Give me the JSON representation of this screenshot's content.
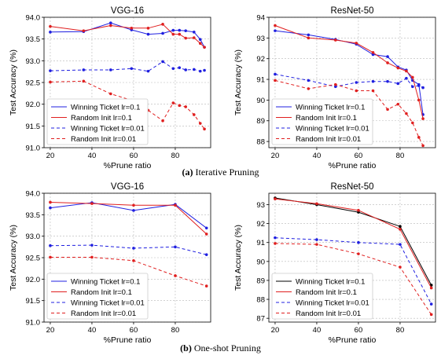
{
  "captions": {
    "top_label": "(a)",
    "top_text": "Iterative Pruning",
    "bottom_label": "(b)",
    "bottom_text": "One-shot Pruning"
  },
  "colors": {
    "blue": "#1f1fe0",
    "red": "#e01f1f",
    "grid": "#b8b8b8"
  },
  "chart_data": [
    {
      "type": "line",
      "title": "VGG-16",
      "xlabel": "%Prune ratio",
      "ylabel": "Test Accuracy (%)",
      "xlim": [
        17,
        97
      ],
      "ylim": [
        91.0,
        94.0
      ],
      "xticks": [
        20,
        40,
        60,
        80
      ],
      "yticks": [
        91.0,
        91.5,
        92.0,
        92.5,
        93.0,
        93.5,
        94.0
      ],
      "ytick_labels": [
        "91.0",
        "91.5",
        "92.0",
        "92.5",
        "93.0",
        "93.5",
        "94.0"
      ],
      "grid": true,
      "legend_position": "lower-left",
      "series": [
        {
          "name": "Winning Ticket lr=0.1",
          "color": "blue",
          "dash": false,
          "x": [
            20,
            36,
            49,
            59,
            67,
            74,
            79,
            82,
            85,
            89,
            92,
            94
          ],
          "y": [
            93.66,
            93.67,
            93.87,
            93.71,
            93.61,
            93.63,
            93.7,
            93.7,
            93.69,
            93.66,
            93.49,
            93.31
          ]
        },
        {
          "name": "Random Init lr=0.1",
          "color": "red",
          "dash": false,
          "x": [
            20,
            36,
            49,
            59,
            67,
            74,
            79,
            82,
            85,
            89,
            92,
            94
          ],
          "y": [
            93.79,
            93.69,
            93.81,
            93.75,
            93.75,
            93.84,
            93.61,
            93.61,
            93.52,
            93.53,
            93.4,
            93.31
          ]
        },
        {
          "name": "Winning Ticket lr=0.01",
          "color": "blue",
          "dash": true,
          "x": [
            20,
            36,
            49,
            59,
            67,
            74,
            79,
            82,
            85,
            89,
            92,
            94
          ],
          "y": [
            92.77,
            92.79,
            92.79,
            92.82,
            92.76,
            92.98,
            92.82,
            92.84,
            92.79,
            92.8,
            92.76,
            92.78
          ]
        },
        {
          "name": "Random Init lr=0.01",
          "color": "red",
          "dash": true,
          "x": [
            20,
            36,
            49,
            59,
            67,
            74,
            79,
            82,
            85,
            89,
            92,
            94
          ],
          "y": [
            92.51,
            92.53,
            92.24,
            92.09,
            91.86,
            91.62,
            92.03,
            91.97,
            91.94,
            91.76,
            91.56,
            91.43
          ]
        }
      ]
    },
    {
      "type": "line",
      "title": "ResNet-50",
      "xlabel": "%Prune ratio",
      "ylabel": "Test Accuracy (%)",
      "xlim": [
        17,
        97
      ],
      "ylim": [
        87.7,
        94.0
      ],
      "xticks": [
        20,
        40,
        60,
        80
      ],
      "yticks": [
        88,
        89,
        90,
        91,
        92,
        93,
        94
      ],
      "ytick_labels": [
        "88",
        "89",
        "90",
        "91",
        "92",
        "93",
        "94"
      ],
      "grid": true,
      "legend_position": "lower-left",
      "series": [
        {
          "name": "Winning Ticket lr=0.1",
          "color": "blue",
          "dash": false,
          "x": [
            20,
            36,
            49,
            59,
            67,
            74,
            79,
            83,
            86,
            89,
            91
          ],
          "y": [
            93.35,
            93.15,
            92.93,
            92.7,
            92.2,
            92.1,
            91.6,
            91.45,
            90.95,
            90.75,
            89.3
          ]
        },
        {
          "name": "Random Init lr=0.1",
          "color": "red",
          "dash": false,
          "x": [
            20,
            36,
            49,
            59,
            67,
            74,
            79,
            83,
            86,
            89,
            91
          ],
          "y": [
            93.6,
            93.0,
            92.9,
            92.75,
            92.3,
            91.8,
            91.55,
            91.4,
            91.1,
            90.0,
            89.1
          ]
        },
        {
          "name": "Winning Ticket lr=0.01",
          "color": "blue",
          "dash": true,
          "x": [
            20,
            36,
            49,
            59,
            67,
            74,
            79,
            83,
            86,
            89,
            91
          ],
          "y": [
            91.25,
            90.95,
            90.65,
            90.85,
            90.9,
            90.9,
            90.8,
            91.05,
            90.65,
            90.7,
            90.6
          ]
        },
        {
          "name": "Random Init lr=0.01",
          "color": "red",
          "dash": true,
          "x": [
            20,
            36,
            49,
            59,
            67,
            74,
            79,
            83,
            86,
            89,
            91
          ],
          "y": [
            90.95,
            90.55,
            90.75,
            90.45,
            90.45,
            89.55,
            89.8,
            89.35,
            88.9,
            88.2,
            87.8
          ]
        }
      ]
    },
    {
      "type": "line",
      "title": "VGG-16",
      "xlabel": "%Prune ratio",
      "ylabel": "Test Accuracy (%)",
      "xlim": [
        17,
        97
      ],
      "ylim": [
        91.0,
        94.0
      ],
      "xticks": [
        20,
        40,
        60,
        80
      ],
      "yticks": [
        91.0,
        91.5,
        92.0,
        92.5,
        93.0,
        93.5,
        94.0
      ],
      "ytick_labels": [
        "91.0",
        "91.5",
        "92.0",
        "92.5",
        "93.0",
        "93.5",
        "94.0"
      ],
      "grid": true,
      "legend_position": "lower-left",
      "series": [
        {
          "name": "Winning Ticket lr=0.1",
          "color": "blue",
          "dash": false,
          "x": [
            20,
            40,
            60,
            80,
            95
          ],
          "y": [
            93.66,
            93.78,
            93.6,
            93.74,
            93.19
          ]
        },
        {
          "name": "Random Init lr=0.1",
          "color": "red",
          "dash": false,
          "x": [
            20,
            40,
            60,
            80,
            95
          ],
          "y": [
            93.79,
            93.76,
            93.72,
            93.72,
            93.05
          ]
        },
        {
          "name": "Winning Ticket lr=0.01",
          "color": "blue",
          "dash": true,
          "x": [
            20,
            40,
            60,
            80,
            95
          ],
          "y": [
            92.78,
            92.79,
            92.72,
            92.75,
            92.57
          ]
        },
        {
          "name": "Random Init lr=0.01",
          "color": "red",
          "dash": true,
          "x": [
            20,
            40,
            60,
            80,
            95
          ],
          "y": [
            92.51,
            92.51,
            92.43,
            92.08,
            91.84
          ]
        }
      ]
    },
    {
      "type": "line",
      "title": "ResNet-50",
      "xlabel": "%Prune ratio",
      "ylabel": "Test Accuracy (%)",
      "xlim": [
        17,
        97
      ],
      "ylim": [
        86.8,
        93.6
      ],
      "xticks": [
        20,
        40,
        60,
        80
      ],
      "yticks": [
        87,
        88,
        89,
        90,
        91,
        92,
        93
      ],
      "ytick_labels": [
        "87",
        "88",
        "89",
        "90",
        "91",
        "92",
        "93"
      ],
      "grid": true,
      "legend_position": "lower-left",
      "series": [
        {
          "name": "Winning Ticket lr=0.1",
          "color": "black",
          "dash": false,
          "x": [
            20,
            40,
            60,
            80,
            95
          ],
          "y": [
            93.35,
            93.0,
            92.6,
            91.85,
            88.75
          ]
        },
        {
          "name": "Random Init lr=0.1",
          "color": "red",
          "dash": false,
          "x": [
            20,
            40,
            60,
            80,
            95
          ],
          "y": [
            93.3,
            93.05,
            92.7,
            91.7,
            88.6
          ]
        },
        {
          "name": "Winning Ticket lr=0.01",
          "color": "blue",
          "dash": true,
          "x": [
            20,
            40,
            60,
            80,
            95
          ],
          "y": [
            91.25,
            91.15,
            91.0,
            90.9,
            87.75
          ]
        },
        {
          "name": "Random Init lr=0.01",
          "color": "red",
          "dash": true,
          "x": [
            20,
            40,
            60,
            80,
            95
          ],
          "y": [
            90.95,
            90.9,
            90.4,
            89.7,
            87.2
          ]
        }
      ]
    }
  ]
}
